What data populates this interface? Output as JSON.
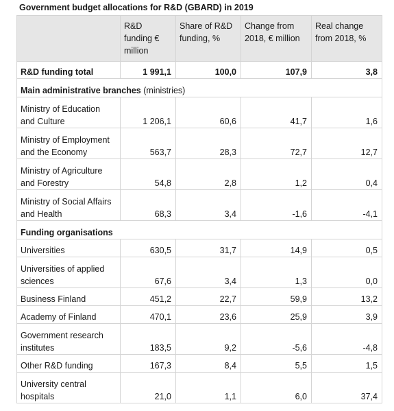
{
  "title": "Government budget allocations for R&D (GBARD) in 2019",
  "headers": [
    "",
    "R&D funding € million",
    "Share of R&D funding, %",
    "Change from 2018, € million",
    "Real change from 2018, %"
  ],
  "total": {
    "label": "R&D funding total",
    "values": [
      "1 991,1",
      "100,0",
      "107,9",
      "3,8"
    ]
  },
  "sections": [
    {
      "heading": "Main administrative branches",
      "heading_note": " (ministries)",
      "rows": [
        {
          "label": "Ministry of Education and Culture",
          "values": [
            "1 206,1",
            "60,6",
            "41,7",
            "1,6"
          ],
          "lines": 2
        },
        {
          "label": "Ministry of Employment and the Economy",
          "values": [
            "563,7",
            "28,3",
            "72,7",
            "12,7"
          ],
          "lines": 2
        },
        {
          "label": "Ministry of Agriculture and Forestry",
          "values": [
            "54,8",
            "2,8",
            "1,2",
            "0,4"
          ],
          "lines": 2
        },
        {
          "label": "Ministry of Social Affairs and Health",
          "values": [
            "68,3",
            "3,4",
            "-1,6",
            "-4,1"
          ],
          "lines": 2
        }
      ]
    },
    {
      "heading": "Funding organisations",
      "heading_note": "",
      "rows": [
        {
          "label": "Universities",
          "values": [
            "630,5",
            "31,7",
            "14,9",
            "0,5"
          ],
          "lines": 1
        },
        {
          "label": "Universities of applied sciences",
          "values": [
            "67,6",
            "3,4",
            "1,3",
            "0,0"
          ],
          "lines": 2
        },
        {
          "label": "Business Finland",
          "values": [
            "451,2",
            "22,7",
            "59,9",
            "13,2"
          ],
          "lines": 1
        },
        {
          "label": "Academy of Finland",
          "values": [
            "470,1",
            "23,6",
            "25,9",
            "3,9"
          ],
          "lines": 1
        },
        {
          "label": "Government research institutes",
          "values": [
            "183,5",
            "9,2",
            "-5,6",
            "-4,8"
          ],
          "lines": 2
        },
        {
          "label": "Other R&D funding",
          "values": [
            "167,3",
            "8,4",
            "5,5",
            "1,5"
          ],
          "lines": 1
        },
        {
          "label": "University central hospitals",
          "values": [
            "21,0",
            "1,1",
            "6,0",
            "37,4"
          ],
          "lines": 2
        }
      ]
    }
  ]
}
